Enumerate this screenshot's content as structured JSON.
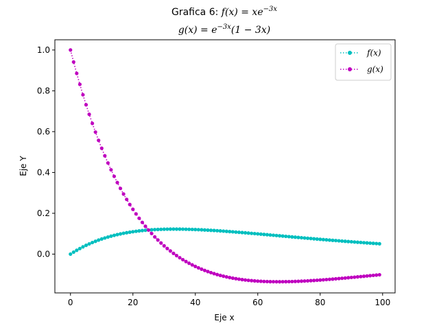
{
  "chart_data": {
    "type": "line",
    "title_line1_prefix": "Grafica 6: ",
    "title_line1_formula": "f(x) = xe",
    "title_line1_exponent": "−3x",
    "title_line2_formula_a": "g(x) = e",
    "title_line2_exponent": "−3x",
    "title_line2_formula_b": "(1 − 3x)",
    "xlabel": "Eje x",
    "ylabel": "Eje Y",
    "xlim": [
      -5,
      104
    ],
    "ylim": [
      -0.19,
      1.05
    ],
    "xticks": [
      0,
      20,
      40,
      60,
      80,
      100
    ],
    "xtick_labels": [
      "0",
      "20",
      "40",
      "60",
      "80",
      "100"
    ],
    "yticks": [
      0.0,
      0.2,
      0.4,
      0.6,
      0.8,
      1.0
    ],
    "ytick_labels": [
      "0.0",
      "0.2",
      "0.4",
      "0.6",
      "0.8",
      "1.0"
    ],
    "x_domain_note_scale": 0.01,
    "grid": false,
    "legend_position": "top-right",
    "series": [
      {
        "name": "f(x)",
        "formula": "x*exp(-3x)",
        "color": "#00bfbf",
        "linestyle": "dotted",
        "marker": "pentagon"
      },
      {
        "name": "g(x)",
        "formula": "exp(-3x)*(1-3x)",
        "color": "#bf00bf",
        "linestyle": "dotted",
        "marker": "hexagon"
      }
    ],
    "x": [
      0,
      1,
      2,
      3,
      4,
      5,
      6,
      7,
      8,
      9,
      10,
      11,
      12,
      13,
      14,
      15,
      16,
      17,
      18,
      19,
      20,
      21,
      22,
      23,
      24,
      25,
      26,
      27,
      28,
      29,
      30,
      31,
      32,
      33,
      34,
      35,
      36,
      37,
      38,
      39,
      40,
      41,
      42,
      43,
      44,
      45,
      46,
      47,
      48,
      49,
      50,
      51,
      52,
      53,
      54,
      55,
      56,
      57,
      58,
      59,
      60,
      61,
      62,
      63,
      64,
      65,
      66,
      67,
      68,
      69,
      70,
      71,
      72,
      73,
      74,
      75,
      76,
      77,
      78,
      79,
      80,
      81,
      82,
      83,
      84,
      85,
      86,
      87,
      88,
      89,
      90,
      91,
      92,
      93,
      94,
      95,
      96,
      97,
      98,
      99
    ]
  }
}
